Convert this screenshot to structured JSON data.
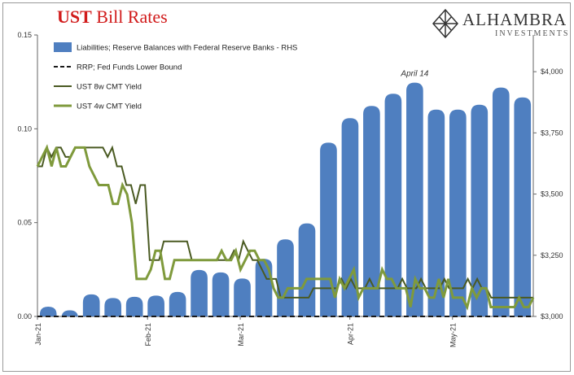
{
  "header": {
    "title_bold": "UST",
    "title_rest": "Bill Rates",
    "logo_name": "ALHAMBRA",
    "logo_sub": "INVESTMENTS",
    "logo_icon": "diamond-lattice-icon"
  },
  "colors": {
    "title": "#d11a1a",
    "bars": "#4f7fc0",
    "rrp": "#1a1a1a",
    "ust8w": "#4a5a22",
    "ust4w": "#7f9a3c"
  },
  "chart_data": {
    "type": "bar+line",
    "annotation": "April 14",
    "left_axis": {
      "ylim": [
        0,
        0.15
      ],
      "ticks": [
        "0.00",
        "0.05",
        "0.10",
        "0.15"
      ]
    },
    "right_axis": {
      "ylim": [
        3000,
        4150
      ],
      "ticks": [
        "$3,000",
        "$3,250",
        "$3,500",
        "$3,750",
        "$4,000"
      ]
    },
    "x_ticks": [
      "Jan-21",
      "Feb-21",
      "Mar-21",
      "Apr-21",
      "May-21"
    ],
    "legend": [
      "Liabilities; Reserve Balances with Federal Reserve Banks - RHS",
      "RRP; Fed Funds Lower Bound",
      "UST 8w CMT Yield",
      "UST 4w CMT Yield"
    ],
    "bars": {
      "name": "Liabilities; Reserve Balances with Federal Reserve Banks - RHS",
      "axis": "right",
      "values": [
        3040,
        3025,
        3090,
        3075,
        3080,
        3085,
        3100,
        3190,
        3180,
        3155,
        3235,
        3315,
        3380,
        3710,
        3810,
        3860,
        3910,
        3955,
        3845,
        3845,
        3865,
        3935,
        3895
      ]
    },
    "rrp": {
      "name": "RRP; Fed Funds Lower Bound",
      "axis": "left",
      "values": [
        0,
        0
      ]
    },
    "ust8w": {
      "name": "UST 8w CMT Yield",
      "axis": "left",
      "values": [
        0.08,
        0.08,
        0.09,
        0.085,
        0.09,
        0.09,
        0.085,
        0.085,
        0.09,
        0.09,
        0.09,
        0.09,
        0.09,
        0.09,
        0.09,
        0.085,
        0.09,
        0.08,
        0.08,
        0.07,
        0.07,
        0.06,
        0.07,
        0.07,
        0.03,
        0.03,
        0.03,
        0.04,
        0.04,
        0.04,
        0.04,
        0.04,
        0.04,
        0.03,
        0.03,
        0.03,
        0.03,
        0.03,
        0.03,
        0.03,
        0.03,
        0.03,
        0.035,
        0.03,
        0.04,
        0.035,
        0.03,
        0.03,
        0.025,
        0.02,
        0.02,
        0.02,
        0.01,
        0.01,
        0.01,
        0.01,
        0.01,
        0.01,
        0.01,
        0.015,
        0.015,
        0.015,
        0.015,
        0.015,
        0.015,
        0.02,
        0.015,
        0.02,
        0.015,
        0.015,
        0.015,
        0.02,
        0.015,
        0.015,
        0.015,
        0.015,
        0.015,
        0.015,
        0.02,
        0.015,
        0.015,
        0.015,
        0.02,
        0.015,
        0.015,
        0.015,
        0.015,
        0.02,
        0.015,
        0.015,
        0.015,
        0.015,
        0.02,
        0.015,
        0.02,
        0.015,
        0.015,
        0.01,
        0.01,
        0.01,
        0.01,
        0.01,
        0.01,
        0.01,
        0.01,
        0.01,
        0.01
      ]
    },
    "ust4w": {
      "name": "UST 4w CMT Yield",
      "axis": "left",
      "values": [
        0.08,
        0.085,
        0.09,
        0.08,
        0.09,
        0.08,
        0.08,
        0.085,
        0.09,
        0.09,
        0.09,
        0.08,
        0.075,
        0.07,
        0.07,
        0.07,
        0.06,
        0.06,
        0.07,
        0.065,
        0.05,
        0.02,
        0.02,
        0.02,
        0.025,
        0.035,
        0.035,
        0.02,
        0.02,
        0.03,
        0.03,
        0.03,
        0.03,
        0.03,
        0.03,
        0.03,
        0.03,
        0.03,
        0.03,
        0.035,
        0.03,
        0.03,
        0.035,
        0.025,
        0.03,
        0.035,
        0.035,
        0.03,
        0.03,
        0.025,
        0.015,
        0.01,
        0.01,
        0.015,
        0.015,
        0.015,
        0.015,
        0.02,
        0.02,
        0.02,
        0.02,
        0.02,
        0.02,
        0.01,
        0.02,
        0.015,
        0.02,
        0.025,
        0.01,
        0.015,
        0.015,
        0.015,
        0.015,
        0.025,
        0.02,
        0.02,
        0.015,
        0.015,
        0.015,
        0.005,
        0.02,
        0.015,
        0.015,
        0.01,
        0.01,
        0.02,
        0.01,
        0.02,
        0.01,
        0.01,
        0.01,
        0.005,
        0.015,
        0.01,
        0.015,
        0.015,
        0.005,
        0.005,
        0.005,
        0.005,
        0.005,
        0.005,
        0.01,
        0.005,
        0.005,
        0.01
      ]
    }
  }
}
